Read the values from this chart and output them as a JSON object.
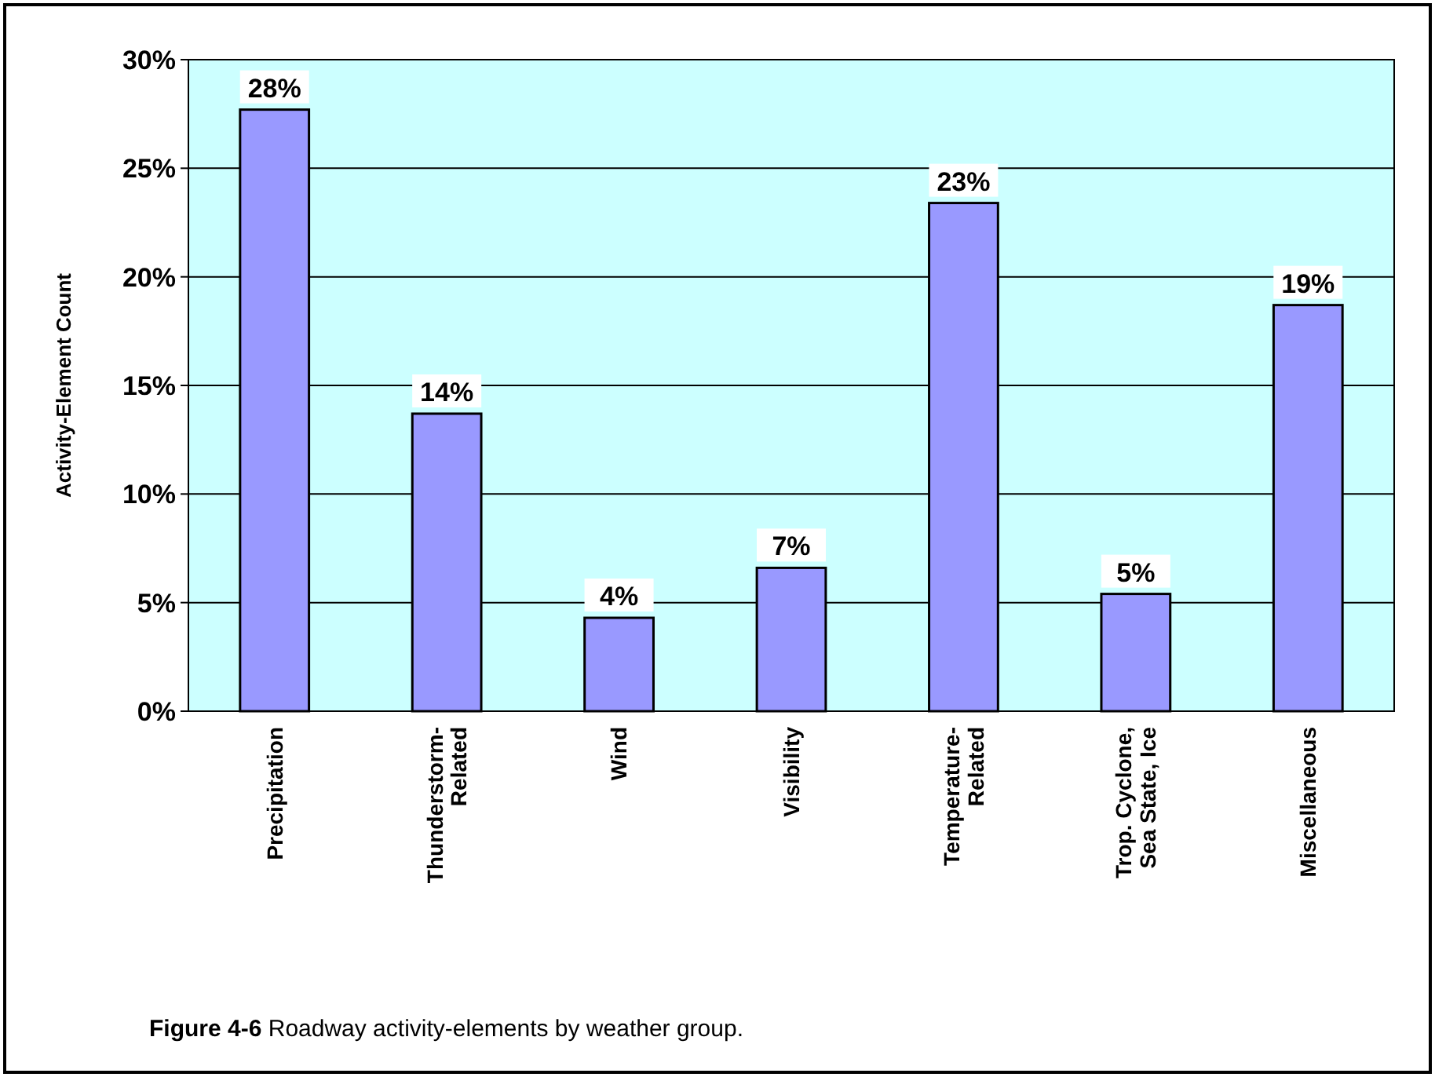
{
  "chart_data": {
    "type": "bar",
    "categories": [
      "Precipitation",
      "Thunderstorm-\nRelated",
      "Wind",
      "Visibility",
      "Temperature-\nRelated",
      "Trop. Cyclone,\nSea State, Ice",
      "Miscellaneous"
    ],
    "values": [
      27.7,
      13.7,
      4.3,
      6.6,
      23.4,
      5.4,
      18.7
    ],
    "value_labels": [
      "28%",
      "14%",
      "4%",
      "7%",
      "23%",
      "5%",
      "19%"
    ],
    "color": "#9999ff",
    "ylabel": "Activity-Element Count",
    "ylim": [
      0,
      30
    ],
    "yticks": [
      {
        "value": 0,
        "label": "0%"
      },
      {
        "value": 5,
        "label": "5%"
      },
      {
        "value": 10,
        "label": "10%"
      },
      {
        "value": 15,
        "label": "15%"
      },
      {
        "value": 20,
        "label": "20%"
      },
      {
        "value": 25,
        "label": "25%"
      },
      {
        "value": 30,
        "label": "30%"
      }
    ],
    "grid": "y",
    "annotations": [
      "Figure 4-6 Roadway activity-elements by weather group."
    ]
  }
}
